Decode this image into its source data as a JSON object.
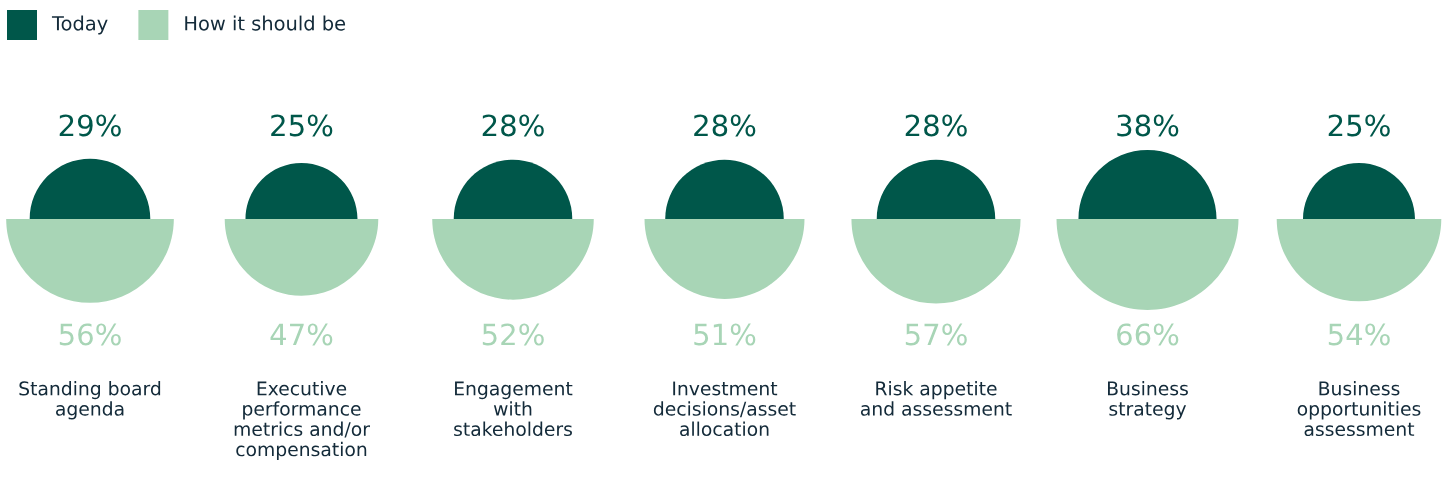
{
  "chart_data": {
    "type": "other",
    "legend": "top left",
    "data_labels": true,
    "categories": [
      "Standing board\nagenda",
      "Executive\nperformance\nmetrics and/or\ncompensation",
      "Engagement\nwith\nstakeholders",
      "Investment\ndecisions/asset\nallocation",
      "Risk appetite\nand assessment",
      "Business\nstrategy",
      "Business\nopportunities\nassessment"
    ],
    "series": [
      {
        "name": "Today",
        "color": "#00574a",
        "values": [
          29,
          25,
          28,
          28,
          28,
          38,
          25
        ],
        "value_labels": [
          "29%",
          "25%",
          "28%",
          "28%",
          "28%",
          "38%",
          "25%"
        ]
      },
      {
        "name": "How it should be",
        "color": "#a8d5b6",
        "values": [
          56,
          47,
          52,
          51,
          57,
          66,
          54
        ],
        "value_labels": [
          "56%",
          "47%",
          "52%",
          "51%",
          "57%",
          "66%",
          "54%"
        ]
      }
    ]
  }
}
